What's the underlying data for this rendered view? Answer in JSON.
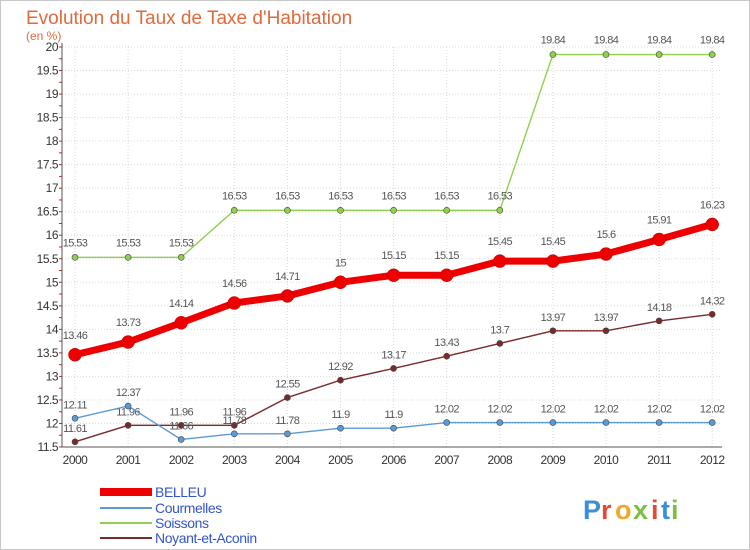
{
  "chart_data": {
    "type": "line",
    "title": "Evolution du Taux de Taxe d'Habitation",
    "subtitle": "(en %)",
    "x": [
      "2000",
      "2001",
      "2002",
      "2003",
      "2004",
      "2005",
      "2006",
      "2007",
      "2008",
      "2009",
      "2010",
      "2011",
      "2012"
    ],
    "ylim": [
      11.5,
      20
    ],
    "ytick_labels": [
      "11.5",
      "12",
      "12.5",
      "13",
      "13.5",
      "14",
      "14.5",
      "15",
      "15.5",
      "16",
      "16.5",
      "17",
      "17.5",
      "18",
      "18.5",
      "19",
      "19.5",
      "20"
    ],
    "grid": true,
    "legend_position": "bottom-left",
    "series": [
      {
        "name": "BELLEU",
        "color": "#ee0000",
        "values": [
          13.46,
          13.73,
          14.14,
          14.56,
          14.71,
          15,
          15.15,
          15.15,
          15.45,
          15.45,
          15.6,
          15.91,
          16.23
        ],
        "labels": [
          "13.46",
          "13.73",
          "14.14",
          "14.56",
          "14.71",
          "15",
          "15.15",
          "15.15",
          "15.45",
          "15.45",
          "15.6",
          "15.91",
          "16.23"
        ]
      },
      {
        "name": "Courmelles",
        "color": "#5b9bd5",
        "values": [
          12.11,
          12.37,
          11.66,
          11.78,
          11.78,
          11.9,
          11.9,
          12.02,
          12.02,
          12.02,
          12.02,
          12.02,
          12.02
        ],
        "labels": [
          "12.11",
          "12.37",
          "11.66",
          "11.78",
          "11.78",
          "11.9",
          "11.9",
          "12.02",
          "12.02",
          "12.02",
          "12.02",
          "12.02",
          "12.02"
        ]
      },
      {
        "name": "Soissons",
        "color": "#8fd14f",
        "values": [
          15.53,
          15.53,
          15.53,
          16.53,
          16.53,
          16.53,
          16.53,
          16.53,
          16.53,
          19.84,
          19.84,
          19.84,
          19.84
        ],
        "labels": [
          "15.53",
          "15.53",
          "15.53",
          "16.53",
          "16.53",
          "16.53",
          "16.53",
          "16.53",
          "16.53",
          "19.84",
          "19.84",
          "19.84",
          "19.84"
        ]
      },
      {
        "name": "Noyant-et-Aconin",
        "color": "#7a2a2a",
        "values": [
          11.61,
          11.96,
          11.96,
          11.96,
          12.55,
          12.92,
          13.17,
          13.43,
          13.7,
          13.97,
          13.97,
          14.18,
          14.32
        ],
        "labels": [
          "11.61",
          "11.96",
          "11.96",
          "11.96",
          "12.55",
          "12.92",
          "13.17",
          "13.43",
          "13.7",
          "13.97",
          "13.97",
          "14.18",
          "14.32"
        ]
      }
    ]
  },
  "brand": {
    "letters": [
      "P",
      "r",
      "o",
      "x",
      "i",
      "t",
      "i"
    ],
    "colors": [
      "#3b8fd9",
      "#e8473c",
      "#f2a92b",
      "#7cc043",
      "#e8473c",
      "#3b8fd9",
      "#7cc043"
    ]
  }
}
